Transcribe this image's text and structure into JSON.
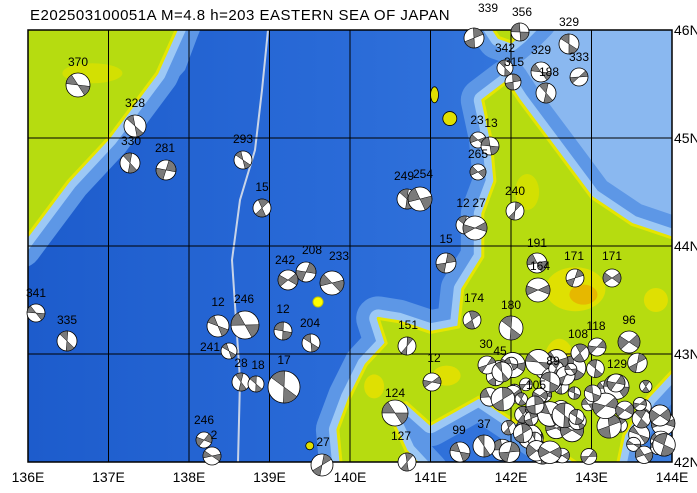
{
  "header": {
    "title": "E202503100051A M=4.8 h=203 EASTERN SEA OF JAPAN"
  },
  "x_axis": {
    "labels": [
      "136E",
      "137E",
      "138E",
      "139E",
      "140E",
      "141E",
      "142E",
      "143E",
      "144E"
    ]
  },
  "y_axis": {
    "labels": [
      "46N",
      "45N",
      "44N",
      "43N",
      "42N"
    ]
  },
  "events": [
    370,
    328,
    330,
    281,
    293,
    15,
    341,
    335,
    12,
    246,
    12,
    204,
    241,
    28,
    18,
    17,
    208,
    233,
    242,
    246,
    2,
    27,
    249,
    254,
    12,
    27,
    15,
    174,
    180,
    151,
    12,
    124,
    127,
    99,
    23,
    13,
    265,
    240,
    191,
    164,
    171,
    171,
    118,
    96,
    108,
    89,
    129,
    329,
    333,
    329,
    356,
    342,
    315,
    339,
    188,
    30,
    45,
    105,
    37
  ]
}
